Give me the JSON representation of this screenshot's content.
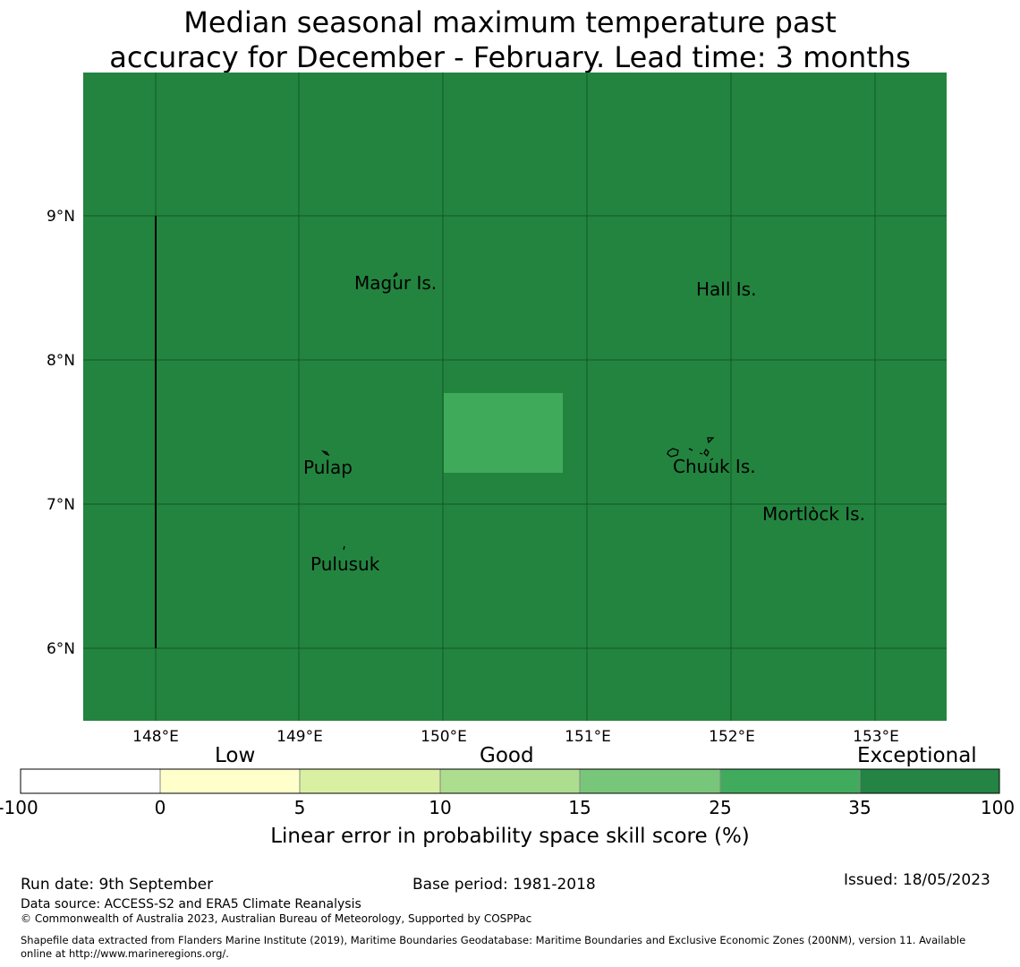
{
  "title": {
    "line1": "Median seasonal maximum temperature past",
    "line2": "accuracy for December - February. Lead time: 3 months"
  },
  "map": {
    "background_color": "#23843f",
    "highlight_color": "#40aa5b",
    "lat_ticks": [
      "9°N",
      "8°N",
      "7°N",
      "6°N"
    ],
    "lon_ticks": [
      "148°E",
      "149°E",
      "150°E",
      "151°E",
      "152°E",
      "153°E"
    ],
    "places": [
      {
        "name": "Magur Is."
      },
      {
        "name": "Hall Is."
      },
      {
        "name": "Pulap"
      },
      {
        "name": "Chuuk Is."
      },
      {
        "name": "Mortlock Is."
      },
      {
        "name": "Pulusuk"
      }
    ]
  },
  "colorbar": {
    "category_labels": [
      "Low",
      "Good",
      "Exceptional"
    ],
    "tick_labels": [
      "-100",
      "0",
      "5",
      "10",
      "15",
      "25",
      "35",
      "100"
    ],
    "colors": [
      "#ffffff",
      "#ffffcc",
      "#d9f0a3",
      "#addd8e",
      "#78c679",
      "#41ab5d",
      "#238443"
    ],
    "axis_label": "Linear error in probability space skill score (%)"
  },
  "footer": {
    "run_date": "Run date: 9th September",
    "base_period": "Base period: 1981-2018",
    "issued": "Issued: 18/05/2023",
    "data_source": "Data source: ACCESS-S2 and ERA5 Climate Reanalysis",
    "copyright": "© Commonwealth of Australia 2023, Australian Bureau of Meteorology, Supported by COSPPac",
    "shapefile_line1": "Shapefile data extracted from Flanders Marine Institute (2019), Maritime Boundaries Geodatabase: Maritime Boundaries and Exclusive Economic Zones (200NM), version 11. Available",
    "shapefile_line2": "online at http://www.marineregions.org/."
  }
}
